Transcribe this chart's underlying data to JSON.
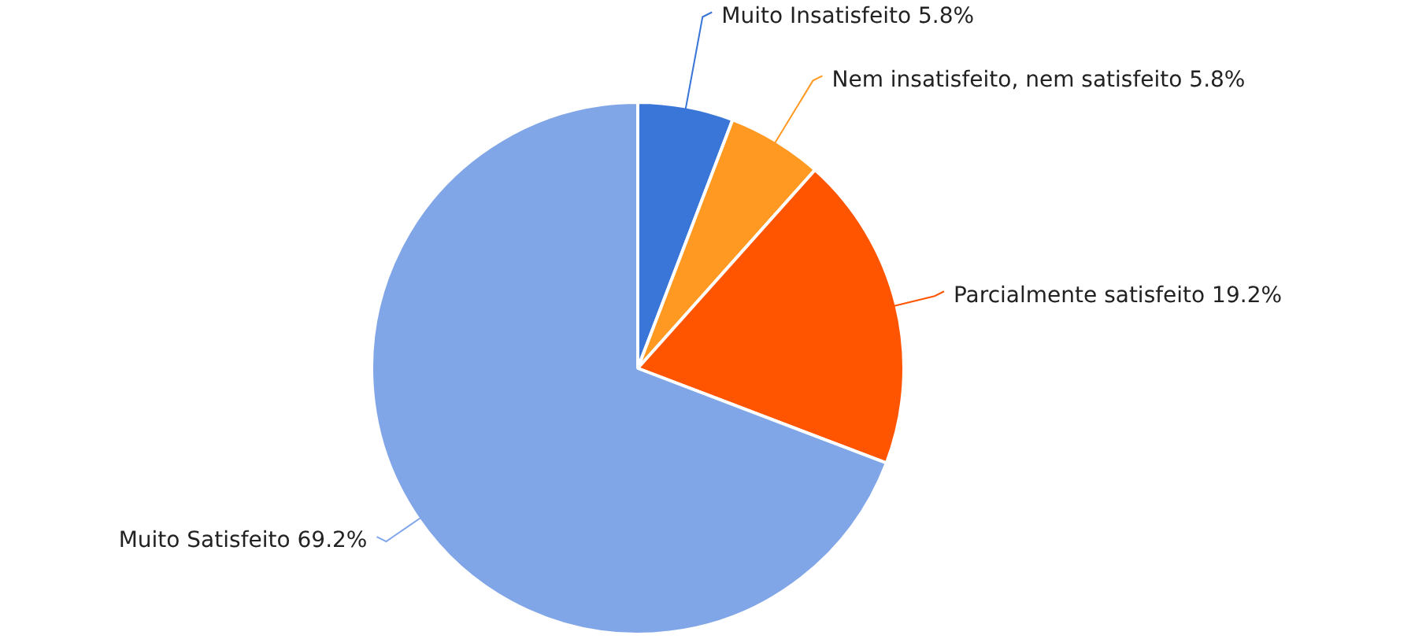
{
  "chart_data": {
    "type": "pie",
    "categories": [
      "Muito Insatisfeito",
      "Nem insatisfeito, nem satisfeito",
      "Parcialmente satisfeito",
      "Muito Satisfeito"
    ],
    "values": [
      5.8,
      5.8,
      19.2,
      69.2
    ],
    "colors": [
      "#3a75d8",
      "#ff9922",
      "#ff5500",
      "#80a6e8"
    ],
    "value_labels": [
      "5.8%",
      "5.8%",
      "19.2%",
      "69.2%"
    ],
    "legend": false
  }
}
